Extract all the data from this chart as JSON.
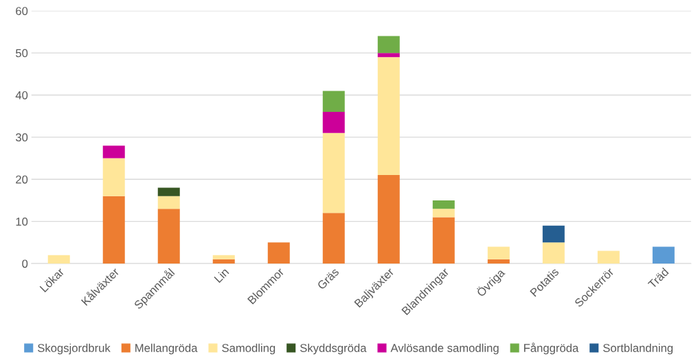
{
  "chart_data": {
    "type": "bar",
    "stacked": true,
    "categories": [
      "Lökar",
      "Kålväxter",
      "Spannmål",
      "Lin",
      "Blommor",
      "Gräs",
      "Baljväxter",
      "Blandningar",
      "Övriga",
      "Potatis",
      "Sockerrör",
      "Träd"
    ],
    "series": [
      {
        "name": "Skogsjordbruk",
        "color": "#5b9bd5",
        "values": [
          null,
          null,
          null,
          null,
          null,
          null,
          null,
          null,
          null,
          null,
          null,
          4
        ]
      },
      {
        "name": "Mellangröda",
        "color": "#ed7d31",
        "values": [
          null,
          16,
          13,
          1,
          5,
          12,
          21,
          11,
          1,
          null,
          null,
          null
        ]
      },
      {
        "name": "Samodling",
        "color": "#ffe699",
        "values": [
          2,
          9,
          3,
          1,
          null,
          19,
          28,
          2,
          3,
          5,
          3,
          null
        ]
      },
      {
        "name": "Skyddsgröda",
        "color": "#375623",
        "values": [
          null,
          null,
          2,
          null,
          null,
          null,
          null,
          null,
          null,
          null,
          null,
          null
        ]
      },
      {
        "name": "Avlösande samodling",
        "color": "#cc0099",
        "values": [
          null,
          3,
          null,
          null,
          null,
          5,
          1,
          null,
          null,
          null,
          null,
          null
        ]
      },
      {
        "name": "Fånggröda",
        "color": "#70ad47",
        "values": [
          null,
          null,
          null,
          null,
          null,
          5,
          4,
          2,
          null,
          null,
          null,
          null
        ]
      },
      {
        "name": "Sortblandning",
        "color": "#255e91",
        "values": [
          null,
          null,
          null,
          null,
          null,
          null,
          null,
          null,
          null,
          4,
          null,
          null
        ]
      }
    ],
    "ylim": [
      0,
      60
    ],
    "yticks": [
      0,
      10,
      20,
      30,
      40,
      50,
      60
    ],
    "grid": "y",
    "legend": "bottom"
  }
}
